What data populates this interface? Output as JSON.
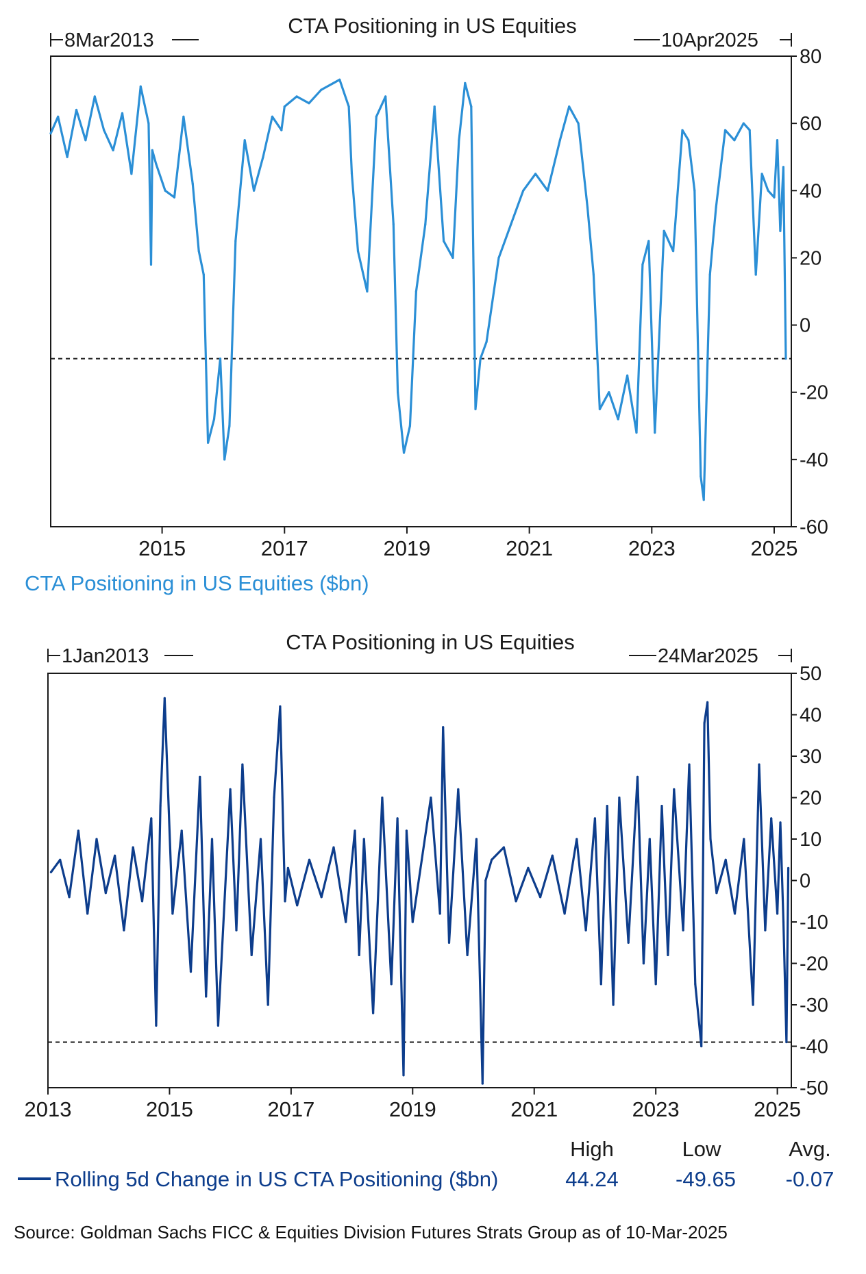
{
  "chart_data": [
    {
      "type": "line",
      "title": "CTA Positioning in US Equities",
      "start_label": "8Mar2013",
      "end_label": "10Apr2025",
      "series_label": "CTA Positioning in US Equities ($bn)",
      "color": "#2b8fd6",
      "ylim": [
        -60,
        80
      ],
      "yticks": [
        "80",
        "60",
        "40",
        "20",
        "0",
        "-20",
        "-40",
        "-60"
      ],
      "xlim": [
        2013.18,
        2025.28
      ],
      "xticks": [
        "2015",
        "2017",
        "2019",
        "2021",
        "2023",
        "2025"
      ],
      "reference_line": -10,
      "x": [
        2013.18,
        2013.3,
        2013.45,
        2013.6,
        2013.75,
        2013.9,
        2014.05,
        2014.2,
        2014.35,
        2014.5,
        2014.65,
        2014.78,
        2014.82,
        2014.84,
        2014.9,
        2015.05,
        2015.2,
        2015.35,
        2015.5,
        2015.6,
        2015.68,
        2015.75,
        2015.85,
        2015.95,
        2016.02,
        2016.1,
        2016.2,
        2016.35,
        2016.5,
        2016.65,
        2016.8,
        2016.95,
        2017.0,
        2017.2,
        2017.4,
        2017.6,
        2017.8,
        2017.9,
        2018.05,
        2018.1,
        2018.2,
        2018.35,
        2018.5,
        2018.65,
        2018.78,
        2018.85,
        2018.95,
        2019.05,
        2019.15,
        2019.3,
        2019.45,
        2019.6,
        2019.75,
        2019.85,
        2019.95,
        2020.05,
        2020.12,
        2020.2,
        2020.3,
        2020.5,
        2020.7,
        2020.9,
        2021.1,
        2021.3,
        2021.5,
        2021.65,
        2021.8,
        2021.95,
        2022.05,
        2022.15,
        2022.3,
        2022.45,
        2022.6,
        2022.75,
        2022.85,
        2022.95,
        2023.05,
        2023.2,
        2023.35,
        2023.5,
        2023.6,
        2023.7,
        2023.8,
        2023.85,
        2023.95,
        2024.05,
        2024.2,
        2024.35,
        2024.5,
        2024.6,
        2024.7,
        2024.8,
        2024.9,
        2025.0,
        2025.05,
        2025.1,
        2025.15,
        2025.19
      ],
      "values": [
        57,
        62,
        50,
        64,
        55,
        68,
        58,
        52,
        63,
        45,
        71,
        60,
        18,
        52,
        48,
        40,
        38,
        62,
        42,
        22,
        15,
        -35,
        -28,
        -10,
        -40,
        -30,
        25,
        55,
        40,
        50,
        62,
        58,
        65,
        68,
        66,
        70,
        72,
        73,
        65,
        45,
        22,
        10,
        62,
        68,
        30,
        -20,
        -38,
        -30,
        10,
        30,
        65,
        25,
        20,
        55,
        72,
        65,
        -25,
        -10,
        -5,
        20,
        30,
        40,
        45,
        40,
        55,
        65,
        60,
        35,
        15,
        -25,
        -20,
        -28,
        -15,
        -32,
        18,
        25,
        -32,
        28,
        22,
        58,
        55,
        40,
        -45,
        -52,
        15,
        35,
        58,
        55,
        60,
        58,
        15,
        45,
        40,
        38,
        55,
        28,
        47,
        -10
      ]
    },
    {
      "type": "line",
      "title": "CTA Positioning in US Equities",
      "start_label": "1Jan2013",
      "end_label": "24Mar2025",
      "series_label": "Rolling 5d Change in US CTA Positioning ($bn)",
      "color": "#0d3d8c",
      "ylim": [
        -50,
        50
      ],
      "yticks": [
        "50",
        "40",
        "30",
        "20",
        "10",
        "0",
        "-10",
        "-20",
        "-30",
        "-40",
        "-50"
      ],
      "xlim": [
        2013.0,
        2025.23
      ],
      "xticks": [
        "2013",
        "2015",
        "2017",
        "2019",
        "2021",
        "2023",
        "2025"
      ],
      "reference_line": -39,
      "stats": {
        "high_label": "High",
        "high_value": "44.24",
        "low_label": "Low",
        "low_value": "-49.65",
        "avg_label": "Avg.",
        "avg_value": "-0.07"
      },
      "x": [
        2013.05,
        2013.2,
        2013.35,
        2013.5,
        2013.65,
        2013.8,
        2013.95,
        2014.1,
        2014.25,
        2014.4,
        2014.55,
        2014.7,
        2014.78,
        2014.85,
        2014.92,
        2015.05,
        2015.2,
        2015.35,
        2015.5,
        2015.6,
        2015.7,
        2015.8,
        2016.0,
        2016.1,
        2016.2,
        2016.35,
        2016.5,
        2016.62,
        2016.72,
        2016.82,
        2016.9,
        2016.95,
        2017.1,
        2017.3,
        2017.5,
        2017.7,
        2017.9,
        2018.05,
        2018.12,
        2018.2,
        2018.35,
        2018.5,
        2018.65,
        2018.75,
        2018.85,
        2018.9,
        2019.0,
        2019.15,
        2019.3,
        2019.45,
        2019.5,
        2019.6,
        2019.75,
        2019.9,
        2020.05,
        2020.15,
        2020.2,
        2020.3,
        2020.5,
        2020.7,
        2020.9,
        2021.1,
        2021.3,
        2021.5,
        2021.7,
        2021.85,
        2022.0,
        2022.1,
        2022.2,
        2022.3,
        2022.4,
        2022.55,
        2022.7,
        2022.8,
        2022.9,
        2023.0,
        2023.1,
        2023.2,
        2023.3,
        2023.45,
        2023.55,
        2023.65,
        2023.75,
        2023.8,
        2023.85,
        2023.9,
        2024.0,
        2024.15,
        2024.3,
        2024.45,
        2024.6,
        2024.7,
        2024.8,
        2024.9,
        2025.0,
        2025.05,
        2025.1,
        2025.15,
        2025.18
      ],
      "values": [
        2,
        5,
        -4,
        12,
        -8,
        10,
        -3,
        6,
        -12,
        8,
        -5,
        15,
        -35,
        18,
        44,
        -8,
        12,
        -22,
        25,
        -28,
        10,
        -35,
        22,
        -12,
        28,
        -18,
        10,
        -30,
        20,
        42,
        -5,
        3,
        -6,
        5,
        -4,
        8,
        -10,
        12,
        -18,
        10,
        -32,
        20,
        -25,
        15,
        -47,
        12,
        -10,
        5,
        20,
        -8,
        37,
        -15,
        22,
        -18,
        10,
        -49,
        0,
        5,
        8,
        -5,
        3,
        -4,
        6,
        -8,
        10,
        -12,
        15,
        -25,
        18,
        -30,
        20,
        -15,
        25,
        -20,
        10,
        -25,
        18,
        -18,
        22,
        -12,
        28,
        -25,
        -40,
        38,
        43,
        10,
        -3,
        5,
        -8,
        10,
        -30,
        28,
        -12,
        15,
        -8,
        14,
        -10,
        -39,
        3
      ]
    }
  ],
  "source_note": "Source: Goldman Sachs FICC & Equities Division Futures Strats Group as of 10-Mar-2025"
}
